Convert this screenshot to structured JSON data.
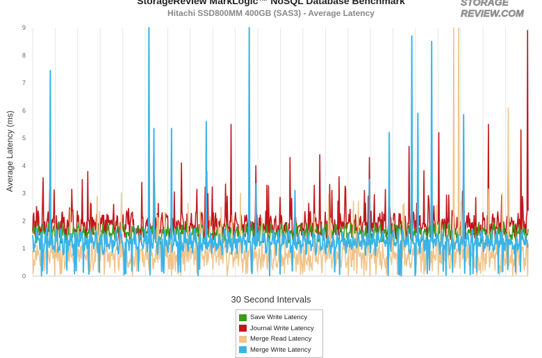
{
  "header": {
    "title": "StorageReview MarkLogic™ NoSQL Database Benchmark",
    "subtitle": "Hitachi SSD800MM 400GB (SAS3) - Average Latency",
    "logo_line1": "STORAGE",
    "logo_line2": "REVIEW.COM"
  },
  "chart_data": {
    "type": "line",
    "title": "StorageReview MarkLogic™ NoSQL Database Benchmark",
    "subtitle": "Hitachi SSD800MM 400GB (SAS3) - Average Latency",
    "xlabel": "30 Second Intervals",
    "ylabel": "Average Latency (ms)",
    "ylim": [
      0,
      9
    ],
    "yticks": [
      "0",
      "1",
      "2",
      "3",
      "4",
      "5",
      "6",
      "7",
      "8",
      "9"
    ],
    "grid": "vertical",
    "legend_position": "bottom",
    "sample_count": 900,
    "series": [
      {
        "name": "Save Write Latency",
        "color": "#3a9a1c",
        "baseline": 1.55,
        "noise": 0.22,
        "spikes": []
      },
      {
        "name": "Journal Write Latency",
        "color": "#c0181c",
        "baseline": 1.8,
        "noise": 0.4,
        "spikes": [
          [
            0.02,
            2.8
          ],
          [
            0.1,
            3.5
          ],
          [
            0.22,
            3.4
          ],
          [
            0.3,
            4.1
          ],
          [
            0.4,
            5.5
          ],
          [
            0.45,
            4.0
          ],
          [
            0.52,
            4.3
          ],
          [
            0.58,
            4.4
          ],
          [
            0.68,
            4.3
          ],
          [
            0.76,
            4.7
          ],
          [
            0.82,
            5.2
          ],
          [
            0.87,
            4.9
          ],
          [
            0.92,
            5.5
          ],
          [
            0.96,
            4.8
          ],
          [
            0.985,
            5.3
          ],
          [
            0.999,
            8.9
          ]
        ]
      },
      {
        "name": "Merge Read Latency",
        "color": "#f0c48a",
        "baseline": 0.75,
        "noise": 0.35,
        "spikes": [
          [
            0.13,
            2.9
          ],
          [
            0.38,
            2.5
          ],
          [
            0.85,
            9.0
          ],
          [
            0.86,
            9.0
          ],
          [
            0.96,
            6.1
          ]
        ]
      },
      {
        "name": "Merge Write Latency",
        "color": "#3ab4e8",
        "baseline": 1.25,
        "noise": 0.3,
        "spikes": [
          [
            0.036,
            7.45
          ],
          [
            0.235,
            9.0
          ],
          [
            0.245,
            5.35
          ],
          [
            0.28,
            5.35
          ],
          [
            0.35,
            5.6
          ],
          [
            0.437,
            9.0
          ],
          [
            0.45,
            3.35
          ],
          [
            0.53,
            3.1
          ],
          [
            0.68,
            3.5
          ],
          [
            0.72,
            5.2
          ],
          [
            0.765,
            8.7
          ],
          [
            0.777,
            5.9
          ],
          [
            0.805,
            8.5
          ],
          [
            0.87,
            5.85
          ]
        ]
      }
    ]
  },
  "legend": {
    "items": [
      {
        "label": "Save Write Latency",
        "color": "#3a9a1c"
      },
      {
        "label": "Journal Write Latency",
        "color": "#c0181c"
      },
      {
        "label": "Merge Read Latency",
        "color": "#f0c48a"
      },
      {
        "label": "Merge Write Latency",
        "color": "#3ab4e8"
      }
    ]
  }
}
